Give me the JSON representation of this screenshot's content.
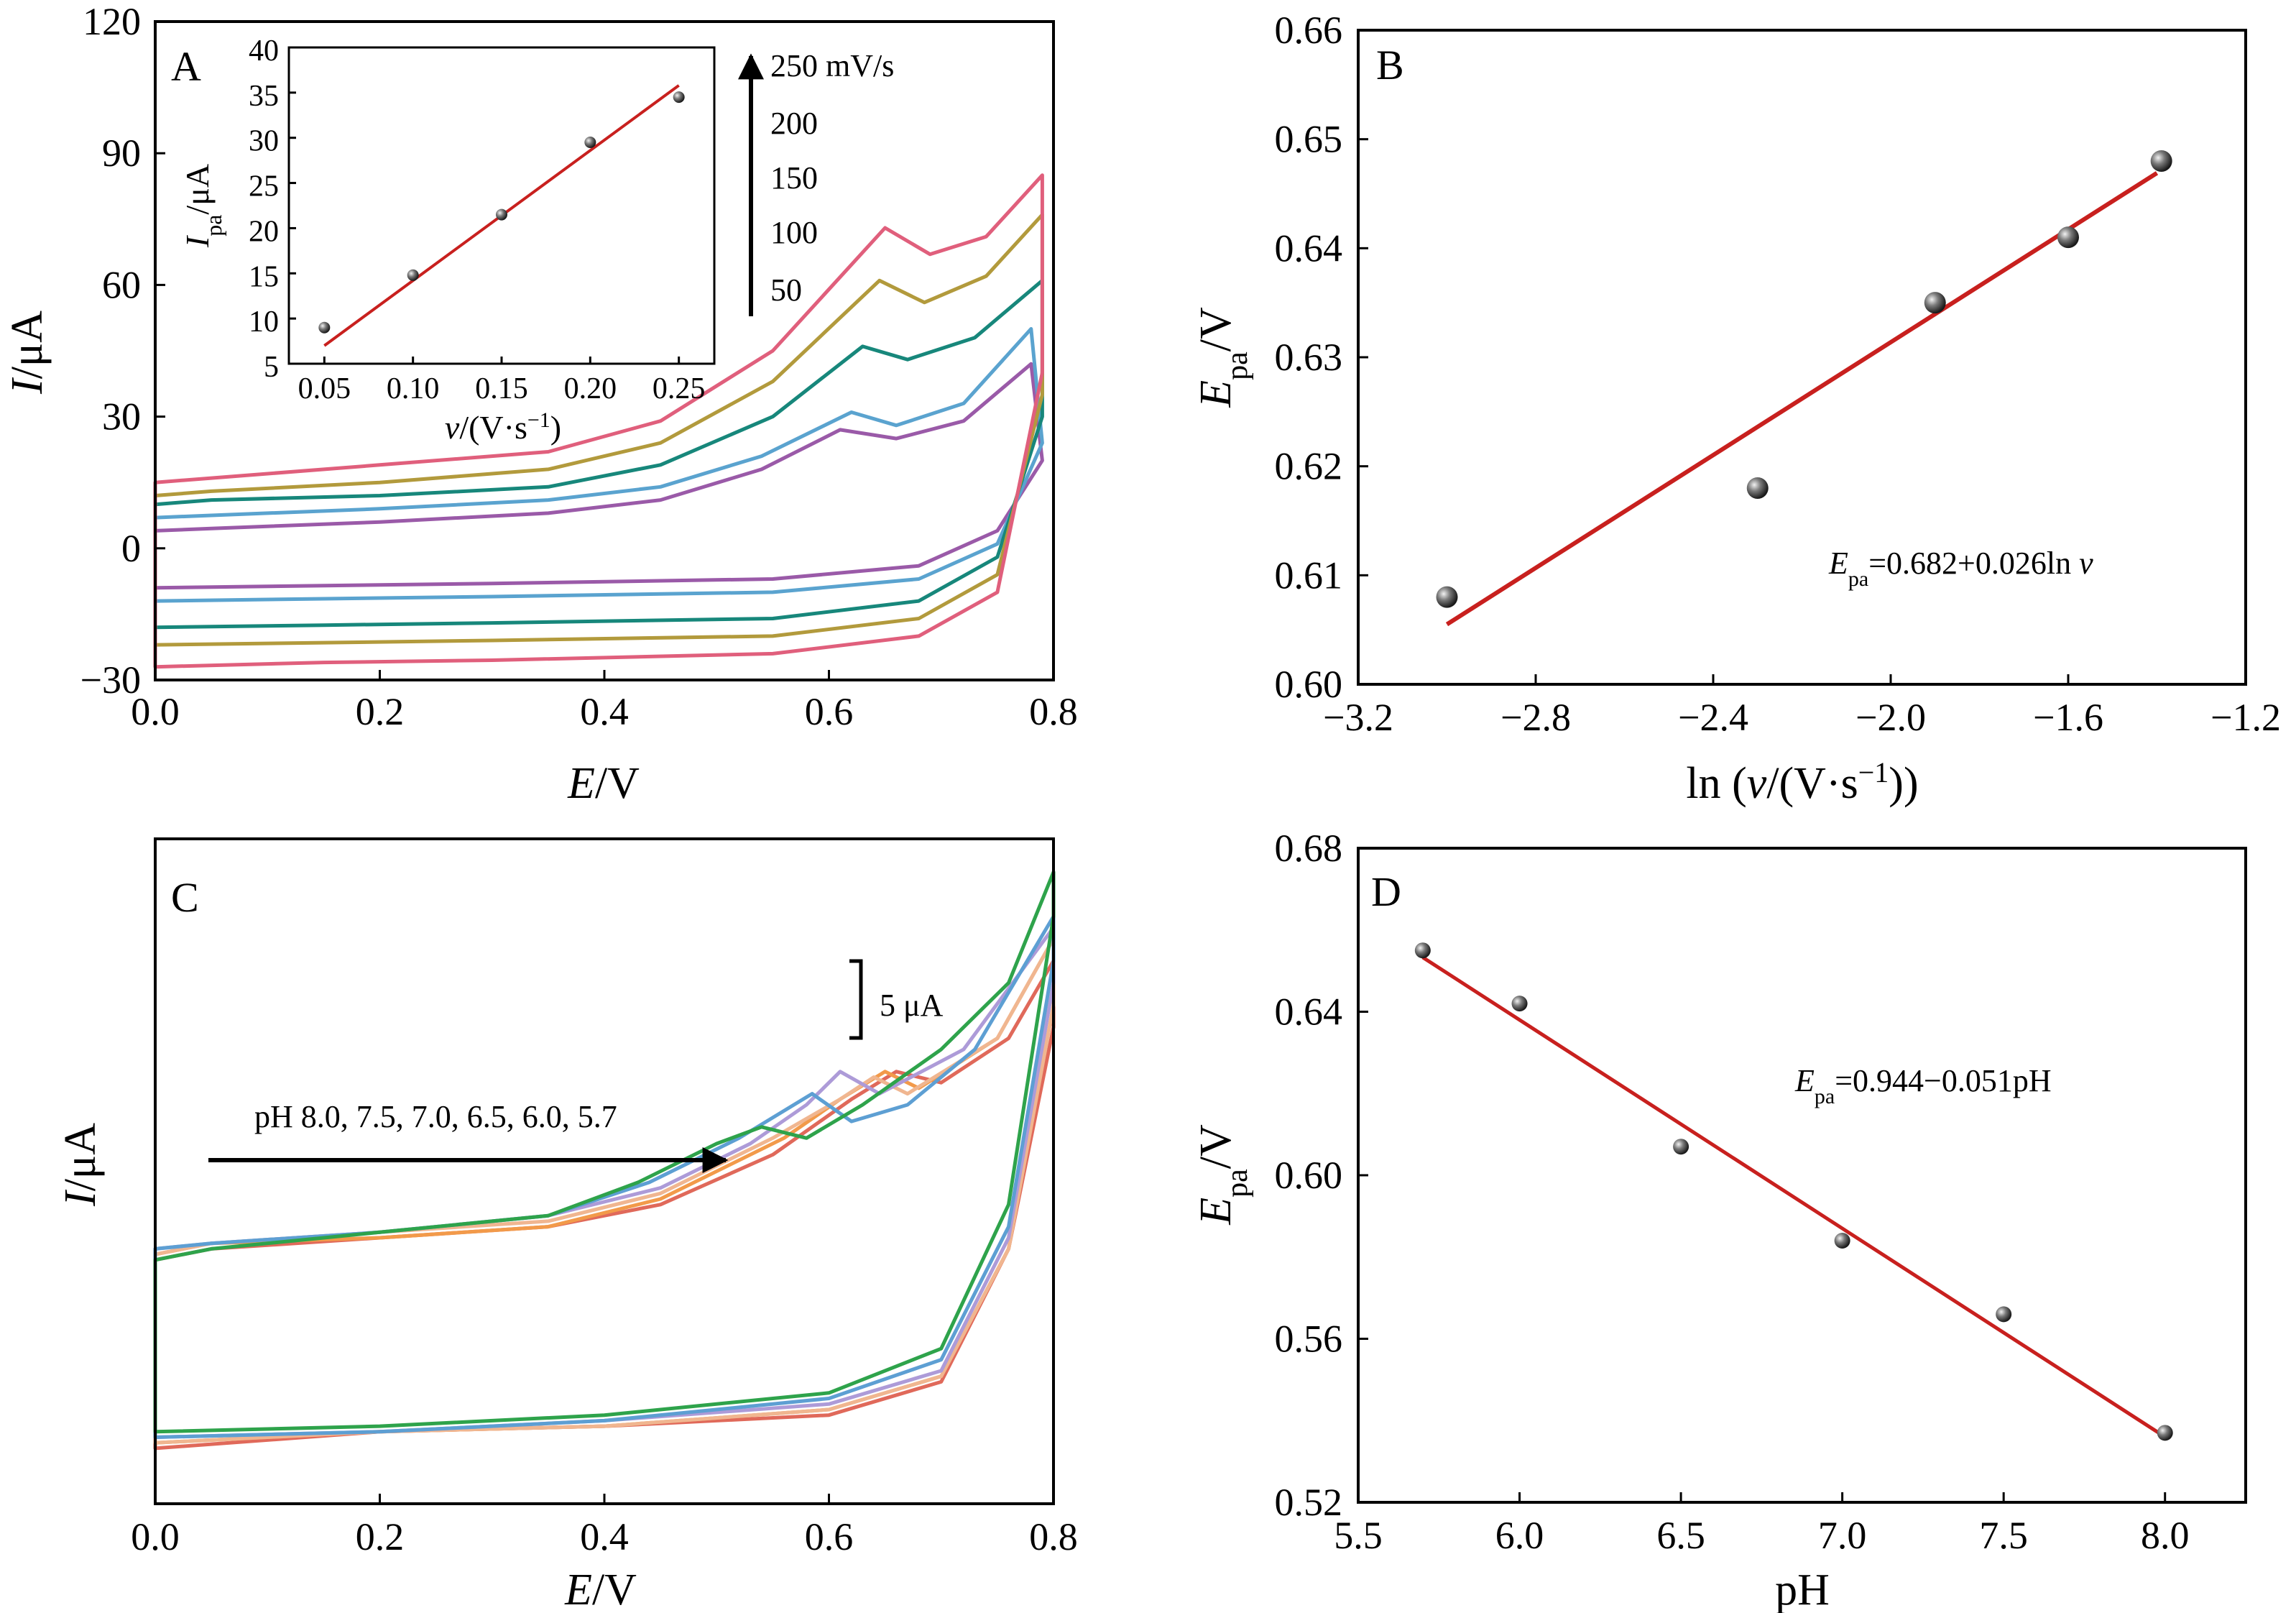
{
  "chart_data": [
    {
      "panel": "A",
      "type": "line",
      "xlabel": "E/V",
      "ylabel": "I/μA",
      "xlim": [
        0,
        0.8
      ],
      "ylim": [
        -30,
        120
      ],
      "xticks": [
        "0.0",
        "0.2",
        "0.4",
        "0.6",
        "0.8"
      ],
      "yticks": [
        "−30",
        "0",
        "30",
        "60",
        "90",
        "120"
      ],
      "arrow_labels": [
        "250 mV/s",
        "200",
        "150",
        "100",
        "50"
      ],
      "series": [
        {
          "name": "50",
          "color": "#9a5aa8",
          "anodic": [
            [
              0.0,
              4
            ],
            [
              0.05,
              4.5
            ],
            [
              0.2,
              6
            ],
            [
              0.35,
              8
            ],
            [
              0.45,
              11
            ],
            [
              0.54,
              18
            ],
            [
              0.61,
              27
            ],
            [
              0.66,
              25
            ],
            [
              0.72,
              29
            ],
            [
              0.78,
              42
            ]
          ],
          "cathodic": [
            [
              0.79,
              20
            ],
            [
              0.75,
              4
            ],
            [
              0.68,
              -4
            ],
            [
              0.55,
              -7
            ],
            [
              0.3,
              -8
            ],
            [
              0.15,
              -8.5
            ],
            [
              0.0,
              -9
            ]
          ]
        },
        {
          "name": "100",
          "color": "#5aa3cf",
          "anodic": [
            [
              0.0,
              7
            ],
            [
              0.05,
              7.5
            ],
            [
              0.2,
              9
            ],
            [
              0.35,
              11
            ],
            [
              0.45,
              14
            ],
            [
              0.54,
              21
            ],
            [
              0.62,
              31
            ],
            [
              0.66,
              28
            ],
            [
              0.72,
              33
            ],
            [
              0.78,
              50
            ]
          ],
          "cathodic": [
            [
              0.79,
              24
            ],
            [
              0.75,
              1
            ],
            [
              0.68,
              -7
            ],
            [
              0.55,
              -10
            ],
            [
              0.3,
              -11
            ],
            [
              0.15,
              -11.5
            ],
            [
              0.0,
              -12
            ]
          ]
        },
        {
          "name": "150",
          "color": "#17877b",
          "anodic": [
            [
              0.0,
              10
            ],
            [
              0.05,
              11
            ],
            [
              0.2,
              12
            ],
            [
              0.35,
              14
            ],
            [
              0.45,
              19
            ],
            [
              0.55,
              30
            ],
            [
              0.63,
              46
            ],
            [
              0.67,
              43
            ],
            [
              0.73,
              48
            ],
            [
              0.79,
              61
            ]
          ],
          "cathodic": [
            [
              0.79,
              30
            ],
            [
              0.75,
              -2
            ],
            [
              0.68,
              -12
            ],
            [
              0.55,
              -16
            ],
            [
              0.3,
              -17
            ],
            [
              0.15,
              -17.5
            ],
            [
              0.0,
              -18
            ]
          ]
        },
        {
          "name": "200",
          "color": "#b29a3c",
          "anodic": [
            [
              0.0,
              12
            ],
            [
              0.05,
              13
            ],
            [
              0.2,
              15
            ],
            [
              0.35,
              18
            ],
            [
              0.45,
              24
            ],
            [
              0.55,
              38
            ],
            [
              0.645,
              61
            ],
            [
              0.685,
              56
            ],
            [
              0.74,
              62
            ],
            [
              0.79,
              76
            ]
          ],
          "cathodic": [
            [
              0.79,
              35
            ],
            [
              0.75,
              -6
            ],
            [
              0.68,
              -16
            ],
            [
              0.55,
              -20
            ],
            [
              0.3,
              -21
            ],
            [
              0.15,
              -21.5
            ],
            [
              0.0,
              -22
            ]
          ]
        },
        {
          "name": "250",
          "color": "#e05f7c",
          "anodic": [
            [
              0.0,
              15
            ],
            [
              0.05,
              16
            ],
            [
              0.2,
              19
            ],
            [
              0.35,
              22
            ],
            [
              0.45,
              29
            ],
            [
              0.55,
              45
            ],
            [
              0.65,
              73
            ],
            [
              0.69,
              67
            ],
            [
              0.74,
              71
            ],
            [
              0.79,
              85
            ]
          ],
          "cathodic": [
            [
              0.79,
              40
            ],
            [
              0.75,
              -10
            ],
            [
              0.68,
              -20
            ],
            [
              0.55,
              -24
            ],
            [
              0.3,
              -25.5
            ],
            [
              0.15,
              -26
            ],
            [
              0.0,
              -27
            ]
          ]
        }
      ]
    },
    {
      "panel": "A-inset",
      "type": "scatter",
      "xlabel": "v/(V·s−1)",
      "ylabel": "Ipa/μA",
      "xlim": [
        0.03,
        0.27
      ],
      "ylim": [
        5,
        40
      ],
      "xticks": [
        "0.05",
        "0.10",
        "0.15",
        "0.20",
        "0.25"
      ],
      "yticks": [
        "5",
        "10",
        "15",
        "20",
        "25",
        "30",
        "35",
        "40"
      ],
      "x": [
        0.05,
        0.1,
        0.15,
        0.2,
        0.25
      ],
      "y": [
        9.0,
        14.8,
        21.5,
        29.5,
        34.5
      ],
      "fit": {
        "x": [
          0.05,
          0.25
        ],
        "y": [
          7.0,
          35.8
        ]
      }
    },
    {
      "panel": "B",
      "type": "scatter",
      "xlabel": "ln (v/(V·s−1))",
      "ylabel": "Epa/V",
      "xlim": [
        -3.2,
        -1.2
      ],
      "ylim": [
        0.6,
        0.66
      ],
      "xticks": [
        "−3.2",
        "−2.8",
        "−2.4",
        "−2.0",
        "−1.6",
        "−1.2"
      ],
      "yticks": [
        "0.60",
        "0.61",
        "0.62",
        "0.63",
        "0.64",
        "0.65",
        "0.66"
      ],
      "x": [
        -3.0,
        -2.3,
        -1.9,
        -1.6,
        -1.39
      ],
      "y": [
        0.608,
        0.618,
        0.635,
        0.641,
        0.648
      ],
      "fit": {
        "x": [
          -3.0,
          -1.4
        ],
        "y": [
          0.6055,
          0.6469
        ]
      },
      "equation": "Epa=0.682+0.026ln v"
    },
    {
      "panel": "C",
      "type": "line",
      "xlabel": "E/V",
      "ylabel": "I/μA",
      "xlim": [
        0,
        0.8
      ],
      "ylim": [
        -5,
        55
      ],
      "xticks": [
        "0.0",
        "0.2",
        "0.4",
        "0.6",
        "0.8"
      ],
      "scale_bar": "5 μA",
      "arrow_text": "pH 8.0, 7.5, 7.0, 6.5, 6.0, 5.7",
      "series": [
        {
          "name": "8.0",
          "color": "#e0695a",
          "anodic": [
            [
              0.0,
              17
            ],
            [
              0.05,
              18
            ],
            [
              0.2,
              19
            ],
            [
              0.35,
              20
            ],
            [
              0.45,
              22
            ],
            [
              0.55,
              26.5
            ],
            [
              0.62,
              31.5
            ],
            [
              0.66,
              34
            ],
            [
              0.7,
              33
            ],
            [
              0.76,
              37
            ],
            [
              0.8,
              44
            ]
          ],
          "cathodic": [
            [
              0.8,
              38
            ],
            [
              0.76,
              18
            ],
            [
              0.7,
              6
            ],
            [
              0.6,
              3
            ],
            [
              0.4,
              2
            ],
            [
              0.2,
              1.5
            ],
            [
              0.0,
              0
            ]
          ]
        },
        {
          "name": "7.5",
          "color": "#f29a4a",
          "anodic": [
            [
              0.0,
              17.5
            ],
            [
              0.05,
              18.5
            ],
            [
              0.2,
              19
            ],
            [
              0.35,
              20
            ],
            [
              0.45,
              22.5
            ],
            [
              0.56,
              28
            ],
            [
              0.61,
              31.5
            ],
            [
              0.65,
              34
            ],
            [
              0.68,
              32.5
            ],
            [
              0.75,
              37
            ],
            [
              0.8,
              46
            ]
          ],
          "cathodic": [
            [
              0.8,
              40
            ],
            [
              0.76,
              18
            ],
            [
              0.7,
              6.5
            ],
            [
              0.6,
              3.5
            ],
            [
              0.4,
              2
            ],
            [
              0.2,
              1.5
            ],
            [
              0.0,
              0.5
            ]
          ]
        },
        {
          "name": "7.0",
          "color": "#f0b690",
          "anodic": [
            [
              0.0,
              17.5
            ],
            [
              0.05,
              18.5
            ],
            [
              0.2,
              19.5
            ],
            [
              0.35,
              20.5
            ],
            [
              0.45,
              23
            ],
            [
              0.55,
              28
            ],
            [
              0.61,
              31.5
            ],
            [
              0.64,
              33.5
            ],
            [
              0.67,
              32
            ],
            [
              0.75,
              37
            ],
            [
              0.8,
              46
            ]
          ],
          "cathodic": [
            [
              0.8,
              40
            ],
            [
              0.76,
              18
            ],
            [
              0.7,
              6.5
            ],
            [
              0.6,
              3.5
            ],
            [
              0.4,
              2
            ],
            [
              0.2,
              1.5
            ],
            [
              0.0,
              0.5
            ]
          ]
        },
        {
          "name": "6.5",
          "color": "#ad9bd8",
          "anodic": [
            [
              0.0,
              18
            ],
            [
              0.05,
              18.5
            ],
            [
              0.2,
              19.5
            ],
            [
              0.35,
              21
            ],
            [
              0.45,
              23.5
            ],
            [
              0.53,
              27.5
            ],
            [
              0.58,
              31
            ],
            [
              0.61,
              34
            ],
            [
              0.645,
              32
            ],
            [
              0.72,
              36
            ],
            [
              0.8,
              47
            ]
          ],
          "cathodic": [
            [
              0.8,
              42
            ],
            [
              0.76,
              19
            ],
            [
              0.7,
              7
            ],
            [
              0.6,
              4
            ],
            [
              0.4,
              2.5
            ],
            [
              0.2,
              1.5
            ],
            [
              0.0,
              1
            ]
          ]
        },
        {
          "name": "6.0",
          "color": "#5d9fd3",
          "anodic": [
            [
              0.0,
              18
            ],
            [
              0.05,
              18.5
            ],
            [
              0.2,
              19.5
            ],
            [
              0.35,
              21
            ],
            [
              0.44,
              24
            ],
            [
              0.52,
              28
            ],
            [
              0.585,
              32
            ],
            [
              0.62,
              29.5
            ],
            [
              0.67,
              31
            ],
            [
              0.73,
              36
            ],
            [
              0.8,
              48
            ]
          ],
          "cathodic": [
            [
              0.8,
              44
            ],
            [
              0.76,
              20
            ],
            [
              0.7,
              8
            ],
            [
              0.6,
              4.5
            ],
            [
              0.4,
              2.5
            ],
            [
              0.2,
              1.5
            ],
            [
              0.0,
              1
            ]
          ]
        },
        {
          "name": "5.7",
          "color": "#2ea34b",
          "anodic": [
            [
              0.0,
              17
            ],
            [
              0.05,
              18
            ],
            [
              0.2,
              19.5
            ],
            [
              0.35,
              21
            ],
            [
              0.43,
              24
            ],
            [
              0.5,
              27.5
            ],
            [
              0.54,
              29
            ],
            [
              0.58,
              28
            ],
            [
              0.63,
              31
            ],
            [
              0.7,
              36
            ],
            [
              0.76,
              42
            ],
            [
              0.8,
              52
            ]
          ],
          "cathodic": [
            [
              0.8,
              48
            ],
            [
              0.76,
              22
            ],
            [
              0.7,
              9
            ],
            [
              0.6,
              5
            ],
            [
              0.4,
              3
            ],
            [
              0.2,
              2
            ],
            [
              0.0,
              1.5
            ]
          ]
        }
      ]
    },
    {
      "panel": "D",
      "type": "scatter",
      "xlabel": "pH",
      "ylabel": "Epa/V",
      "xlim": [
        5.5,
        8.25
      ],
      "ylim": [
        0.52,
        0.68
      ],
      "xticks": [
        "5.5",
        "6.0",
        "6.5",
        "7.0",
        "7.5",
        "8.0"
      ],
      "yticks": [
        "0.52",
        "0.56",
        "0.60",
        "0.64",
        "0.68"
      ],
      "x": [
        5.7,
        6.0,
        6.5,
        7.0,
        7.5,
        8.0
      ],
      "y": [
        0.655,
        0.642,
        0.607,
        0.584,
        0.566,
        0.537
      ],
      "fit": {
        "x": [
          5.7,
          8.0
        ],
        "y": [
          0.6533,
          0.536
        ]
      },
      "equation": "Epa=0.944−0.051pH"
    }
  ],
  "panels": {
    "A": {
      "letter": "A"
    },
    "B": {
      "letter": "B"
    },
    "C": {
      "letter": "C"
    },
    "D": {
      "letter": "D"
    }
  },
  "colors": {
    "fit": "#c8201e",
    "marker": "#555555"
  }
}
